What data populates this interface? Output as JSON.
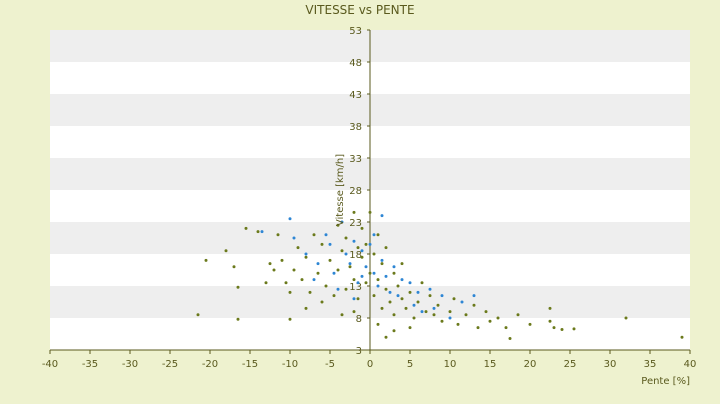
{
  "chart_data": {
    "type": "scatter",
    "title": "VITESSE vs PENTE",
    "xlabel": "Pente [%]",
    "ylabel": "Vitesse [km/h]",
    "xlim": [
      -40,
      40
    ],
    "ylim": [
      3,
      53
    ],
    "x_ticks": [
      -40,
      -35,
      -30,
      -25,
      -20,
      -15,
      -10,
      -5,
      0,
      5,
      10,
      15,
      20,
      25,
      30,
      35,
      40
    ],
    "y_ticks": [
      3,
      8,
      13,
      18,
      23,
      28,
      33,
      38,
      43,
      48,
      53
    ],
    "grid": true,
    "legend": "none",
    "colors": {
      "background": "#eef2cf",
      "band_light": "#ffffff",
      "band_dark": "#eeeeee",
      "axis": "#5a5a1e",
      "text": "#5a5a1e",
      "series_a": "#6b7a1c",
      "series_b": "#2e86d4"
    },
    "series": [
      {
        "values": [
          [
            -21.5,
            8.5
          ],
          [
            -20.5,
            17.0
          ],
          [
            -18.0,
            18.5
          ],
          [
            -17.0,
            16.0
          ],
          [
            -16.5,
            12.8
          ],
          [
            -16.5,
            7.8
          ],
          [
            -15.5,
            22.0
          ],
          [
            -14.0,
            21.5
          ],
          [
            -12.5,
            16.5
          ],
          [
            -12.0,
            15.5
          ],
          [
            -11.5,
            21.0
          ],
          [
            -11.0,
            17.0
          ],
          [
            -10.5,
            13.5
          ],
          [
            -10.0,
            12.0
          ],
          [
            -9.5,
            15.5
          ],
          [
            -9.0,
            19.0
          ],
          [
            -8.5,
            14.0
          ],
          [
            -8.0,
            17.5
          ],
          [
            -7.5,
            12.0
          ],
          [
            -7.0,
            21.0
          ],
          [
            -6.5,
            15.0
          ],
          [
            -6.0,
            19.5
          ],
          [
            -5.5,
            13.0
          ],
          [
            -5.0,
            17.0
          ],
          [
            -4.5,
            11.5
          ],
          [
            -4.0,
            22.5
          ],
          [
            -4.0,
            15.5
          ],
          [
            -3.5,
            18.5
          ],
          [
            -3.0,
            12.5
          ],
          [
            -3.0,
            20.5
          ],
          [
            -2.5,
            16.0
          ],
          [
            -2.0,
            24.5
          ],
          [
            -2.0,
            14.0
          ],
          [
            -1.5,
            19.0
          ],
          [
            -1.5,
            11.0
          ],
          [
            -1.0,
            17.5
          ],
          [
            -1.0,
            22.0
          ],
          [
            -0.5,
            13.5
          ],
          [
            -0.5,
            19.5
          ],
          [
            0.0,
            15.0
          ],
          [
            0.0,
            24.5
          ],
          [
            0.5,
            18.0
          ],
          [
            0.5,
            11.5
          ],
          [
            1.0,
            21.0
          ],
          [
            1.0,
            14.0
          ],
          [
            1.5,
            16.5
          ],
          [
            1.5,
            9.5
          ],
          [
            2.0,
            12.5
          ],
          [
            2.0,
            19.0
          ],
          [
            2.5,
            10.5
          ],
          [
            3.0,
            15.0
          ],
          [
            3.0,
            8.5
          ],
          [
            3.5,
            13.0
          ],
          [
            4.0,
            11.0
          ],
          [
            4.0,
            16.5
          ],
          [
            4.5,
            9.5
          ],
          [
            5.0,
            12.0
          ],
          [
            5.5,
            8.0
          ],
          [
            6.0,
            10.5
          ],
          [
            6.5,
            13.5
          ],
          [
            7.0,
            9.0
          ],
          [
            7.5,
            11.5
          ],
          [
            8.0,
            8.5
          ],
          [
            8.5,
            10.0
          ],
          [
            9.0,
            7.5
          ],
          [
            10.0,
            9.0
          ],
          [
            10.5,
            11.0
          ],
          [
            11.0,
            7.0
          ],
          [
            12.0,
            8.5
          ],
          [
            13.0,
            10.0
          ],
          [
            13.5,
            6.5
          ],
          [
            14.5,
            9.0
          ],
          [
            15.0,
            7.5
          ],
          [
            16.0,
            8.0
          ],
          [
            17.0,
            6.5
          ],
          [
            17.5,
            4.8
          ],
          [
            18.5,
            8.5
          ],
          [
            20.0,
            7.0
          ],
          [
            22.5,
            7.5
          ],
          [
            22.5,
            9.5
          ],
          [
            23.0,
            6.5
          ],
          [
            24.0,
            6.2
          ],
          [
            25.5,
            6.3
          ],
          [
            32.0,
            8.0
          ],
          [
            39.0,
            5.0
          ],
          [
            -13.0,
            13.5
          ],
          [
            -10.0,
            7.8
          ],
          [
            -8.0,
            9.5
          ],
          [
            -6.0,
            10.5
          ],
          [
            -3.5,
            8.5
          ],
          [
            -2.0,
            9.0
          ],
          [
            1.0,
            7.0
          ],
          [
            2.0,
            5.0
          ],
          [
            3.0,
            6.0
          ],
          [
            5.0,
            6.5
          ]
        ]
      },
      {
        "values": [
          [
            -13.5,
            21.5
          ],
          [
            -10.0,
            23.5
          ],
          [
            -9.5,
            20.5
          ],
          [
            -8.0,
            18.0
          ],
          [
            -6.5,
            16.5
          ],
          [
            -5.5,
            21.0
          ],
          [
            -5.0,
            19.5
          ],
          [
            -4.5,
            15.0
          ],
          [
            -3.5,
            23.0
          ],
          [
            -3.0,
            18.0
          ],
          [
            -2.5,
            16.5
          ],
          [
            -2.0,
            20.0
          ],
          [
            -1.5,
            13.5
          ],
          [
            -1.0,
            18.5
          ],
          [
            -0.5,
            16.0
          ],
          [
            0.0,
            19.5
          ],
          [
            0.5,
            15.0
          ],
          [
            1.0,
            13.0
          ],
          [
            1.5,
            17.0
          ],
          [
            1.5,
            24.0
          ],
          [
            2.0,
            14.5
          ],
          [
            2.5,
            12.0
          ],
          [
            3.0,
            16.0
          ],
          [
            3.5,
            11.5
          ],
          [
            4.0,
            14.0
          ],
          [
            5.0,
            13.5
          ],
          [
            5.5,
            10.0
          ],
          [
            6.0,
            12.0
          ],
          [
            6.5,
            9.0
          ],
          [
            7.5,
            12.5
          ],
          [
            8.0,
            9.5
          ],
          [
            9.0,
            11.5
          ],
          [
            10.0,
            8.0
          ],
          [
            11.5,
            10.5
          ],
          [
            13.0,
            11.5
          ],
          [
            -4.0,
            12.5
          ],
          [
            -2.0,
            11.0
          ],
          [
            -1.0,
            14.5
          ],
          [
            0.5,
            21.0
          ],
          [
            -7.0,
            14.0
          ]
        ]
      }
    ]
  }
}
